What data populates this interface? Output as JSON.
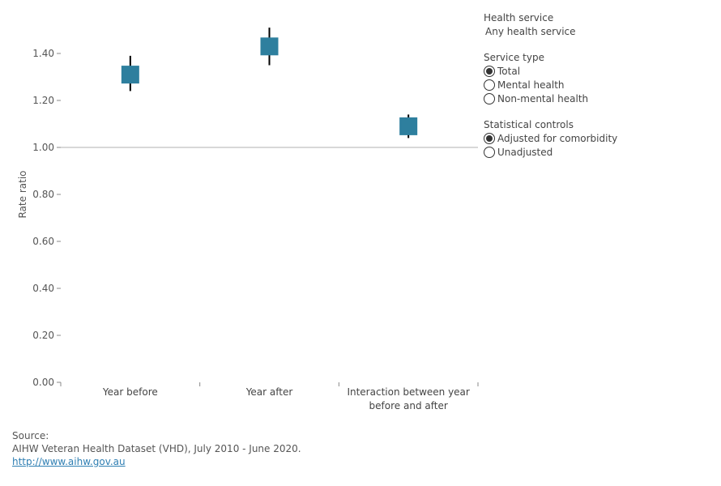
{
  "chart_data": {
    "type": "scatter",
    "ylabel": "Rate ratio",
    "ylim": [
      0,
      1.5
    ],
    "yticks": [
      "0.00",
      "0.20",
      "0.40",
      "0.60",
      "0.80",
      "1.00",
      "1.20",
      "1.40"
    ],
    "reference_line": 1.0,
    "categories": [
      "Year before",
      "Year after",
      "Interaction between year before and after"
    ],
    "category_lines": [
      [
        "Year before"
      ],
      [
        "Year after"
      ],
      [
        "Interaction between year",
        "before and after"
      ]
    ],
    "points": [
      {
        "category": "Year before",
        "value": 1.31,
        "ci_low": 1.24,
        "ci_high": 1.39
      },
      {
        "category": "Year after",
        "value": 1.43,
        "ci_low": 1.35,
        "ci_high": 1.51
      },
      {
        "category": "Interaction between year before and after",
        "value": 1.09,
        "ci_low": 1.04,
        "ci_high": 1.14
      }
    ],
    "marker_color": "#2e7f9e",
    "error_bar_color": "#000000",
    "reference_line_color": "#cccccc"
  },
  "filters": {
    "health_service": {
      "title": "Health service",
      "value": "Any health service"
    },
    "service_type": {
      "title": "Service type",
      "options": [
        {
          "label": "Total",
          "checked": true
        },
        {
          "label": "Mental health",
          "checked": false
        },
        {
          "label": "Non-mental health",
          "checked": false
        }
      ]
    },
    "statistical_controls": {
      "title": "Statistical controls",
      "options": [
        {
          "label": "Adjusted for comorbidity",
          "checked": true
        },
        {
          "label": "Unadjusted",
          "checked": false
        }
      ]
    }
  },
  "source": {
    "heading": "Source:",
    "text": "AIHW Veteran Health Dataset (VHD), July 2010 - June 2020.",
    "link": "http://www.aihw.gov.au"
  }
}
